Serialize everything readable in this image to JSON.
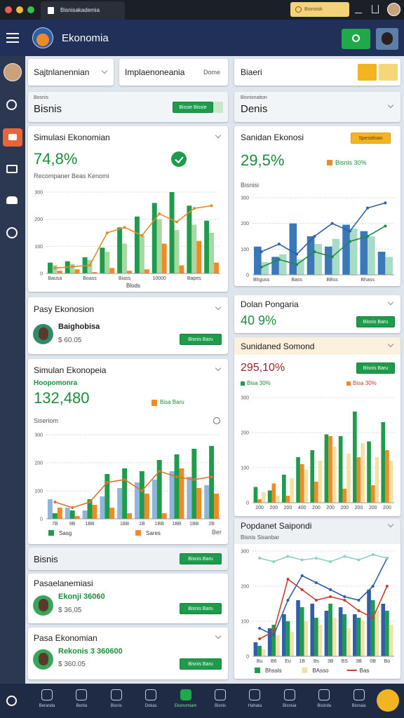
{
  "browser": {
    "tab": "Bisnisakademia",
    "search": "Bisnsisk"
  },
  "header": {
    "title": "Ekonomia"
  },
  "filters": [
    {
      "label": "Sajtnlanennian"
    },
    {
      "label": "Implaenoneania",
      "hint": "Dome"
    },
    {
      "label": "Biaeri"
    }
  ],
  "cards": [
    {
      "caption": "Bosnis",
      "title": "Bisnis",
      "button": "Bissie Bissie"
    },
    {
      "caption": "Bisnisnaiton",
      "title": "Denis"
    },
    {
      "title": "Simulasi Ekonomian",
      "kpi": "74,8%",
      "subtitle": "Recompaner Beas Kenomi",
      "chart": {
        "categories": [
          "Bausa",
          null,
          "Boass",
          null,
          "Biass",
          null,
          "10000",
          null,
          "Bapes",
          null
        ],
        "xlabel": "Blods",
        "ylim": [
          0,
          300
        ],
        "yticks": [
          0,
          100,
          200,
          300
        ],
        "series": [
          {
            "type": "bar",
            "color": "#1e9b4b",
            "values": [
              40,
              45,
              60,
              95,
              170,
              210,
              260,
              300,
              250,
              195
            ]
          },
          {
            "type": "bar",
            "color": "#a8d8a0",
            "values": [
              30,
              35,
              50,
              80,
              110,
              140,
              200,
              160,
              180,
              150
            ]
          },
          {
            "type": "bar",
            "color": "#f08a24",
            "values": [
              10,
              15,
              5,
              20,
              10,
              15,
              110,
              30,
              120,
              40
            ]
          },
          {
            "type": "line",
            "color": "#e08a2a",
            "values": [
              20,
              25,
              30,
              150,
              170,
              140,
              220,
              190,
              240,
              250
            ]
          }
        ]
      }
    },
    {
      "title": "Sanidan Ekonosi",
      "button": "Spesidisan",
      "kpi": "29,5%",
      "legend": "Bisnis 30%",
      "caption": "Bisnisi",
      "chart": {
        "categories": [
          "Bhguss",
          null,
          "Bass",
          null,
          "BBss",
          null,
          "Bhass",
          null
        ],
        "ylim": [
          0,
          300
        ],
        "yticks": [
          0,
          100,
          200,
          300
        ],
        "series": [
          {
            "type": "bar",
            "color": "#3a78b8",
            "values": [
              110,
              70,
              200,
              150,
              110,
              195,
              170,
              90
            ]
          },
          {
            "type": "bar",
            "color": "#a9dcc6",
            "values": [
              50,
              80,
              60,
              120,
              140,
              180,
              150,
              70
            ]
          },
          {
            "type": "line",
            "color": "#1e8a4a",
            "values": [
              30,
              60,
              40,
              90,
              70,
              130,
              150,
              190
            ]
          },
          {
            "type": "line",
            "color": "#2f5fa8",
            "values": [
              90,
              120,
              80,
              150,
              200,
              170,
              260,
              280
            ]
          }
        ]
      }
    },
    {
      "title": "Pasy Ekonosion",
      "person": "Baighobisa",
      "amount": "$ 60.05",
      "button": "Bisnis Baru"
    },
    {
      "title": "Dolan Pongaria",
      "kpi": "40 9%",
      "button": "Bisnis Baru"
    },
    {
      "title": "Simulan Ekonopeia",
      "caption": "Hoopomonra",
      "kpi": "132,480",
      "legend": "Bisa Baru",
      "subtitle": "Siseriom",
      "note": "Ber",
      "chart": {
        "categories": [
          "7B",
          "9B",
          "1BB",
          null,
          "1BB",
          "1B",
          "1BB",
          "1BB",
          "1BB",
          "2B"
        ],
        "ylim": [
          0,
          300
        ],
        "yticks": [
          0,
          100,
          200,
          300
        ],
        "series": [
          {
            "type": "bar",
            "color": "#8fb5dc",
            "values": [
              70,
              40,
              30,
              80,
              110,
              130,
              140,
              170,
              150,
              120
            ]
          },
          {
            "type": "bar",
            "name": "Sasg",
            "color": "#1e9b4b",
            "values": [
              20,
              30,
              70,
              160,
              180,
              170,
              210,
              230,
              250,
              260
            ]
          },
          {
            "type": "bar",
            "name": "Sares",
            "color": "#f08a24",
            "values": [
              40,
              10,
              50,
              40,
              20,
              90,
              20,
              180,
              110,
              90
            ]
          },
          {
            "type": "line",
            "color": "#e0702a",
            "values": [
              60,
              40,
              60,
              130,
              140,
              100,
              170,
              150,
              140,
              150
            ]
          }
        ]
      }
    },
    {
      "title": "Sunidaned Somond",
      "kpi": "295,10%",
      "button": "Bisnis Baru",
      "legend": [
        "Bisa 30%",
        "Bisa 30%"
      ],
      "chart": {
        "categories": [
          "200",
          "200",
          "200",
          "400",
          "200",
          "200",
          "200",
          "200",
          "200",
          "200"
        ],
        "ylim": [
          0,
          300
        ],
        "yticks": [
          0,
          100,
          200,
          300
        ],
        "series": [
          {
            "type": "bar",
            "color": "#1e9b4b",
            "values": [
              45,
              35,
              80,
              130,
              150,
              195,
              190,
              260,
              175,
              230
            ]
          },
          {
            "type": "bar",
            "color": "#f08a24",
            "values": [
              10,
              55,
              20,
              110,
              60,
              190,
              40,
              130,
              50,
              150
            ]
          },
          {
            "type": "bar",
            "color": "#f2e2a8",
            "values": [
              30,
              20,
              70,
              95,
              120,
              160,
              140,
              170,
              130,
              120
            ]
          }
        ]
      }
    },
    {
      "title": "Bisnis",
      "button": "Bisnis Baru"
    },
    {
      "title": "Popdanet Saipondi",
      "caption": "Bisnis Sisanbar",
      "chart": {
        "categories": [
          "Bu",
          "B6",
          "Eu",
          "1B",
          "Bs",
          "3B",
          "BS",
          "3B",
          "0B",
          "Bo"
        ],
        "ylim": [
          0,
          300
        ],
        "yticks": [
          0,
          100,
          200,
          300
        ],
        "series": [
          {
            "type": "bar",
            "color": "#2f5fa8",
            "values": [
              40,
              80,
              120,
              160,
              150,
              130,
              140,
              120,
              190,
              150
            ]
          },
          {
            "type": "bar",
            "name": "Bhssls",
            "color": "#1e9b4b",
            "values": [
              30,
              90,
              100,
              140,
              110,
              150,
              120,
              110,
              160,
              130
            ]
          },
          {
            "type": "bar",
            "name": "BAsso",
            "color": "#f2e2a8",
            "values": [
              20,
              60,
              70,
              100,
              90,
              110,
              80,
              100,
              130,
              90
            ]
          },
          {
            "type": "line",
            "name": "Bas",
            "color": "#c8402a",
            "values": [
              50,
              70,
              220,
              190,
              160,
              170,
              160,
              130,
              110,
              200
            ]
          },
          {
            "type": "line",
            "color": "#2f5fa8",
            "values": [
              80,
              60,
              160,
              230,
              210,
              190,
              170,
              160,
              200,
              280
            ]
          },
          {
            "type": "line",
            "color": "#8fd0c0",
            "values": [
              280,
              270,
              285,
              275,
              280,
              270,
              285,
              275,
              290,
              280
            ]
          }
        ]
      }
    },
    {
      "title": "Pasaelanemiasi",
      "person": "Ekonji 36060",
      "amount": "$ 36,05",
      "button": "Bisnis Baru"
    },
    {
      "title": "Pasa Ekonomian",
      "person": "Rekonis 3 360600",
      "amount": "$ 360.05",
      "button": "Bisnis Baru"
    }
  ],
  "bottom_nav": [
    "Beranda",
    "Berita",
    "Bisnis",
    "Dokas",
    "Ekonomiam",
    "Bisnis",
    "Hahata",
    "Bisnsia",
    "Bisinda",
    "Bisnaia"
  ]
}
